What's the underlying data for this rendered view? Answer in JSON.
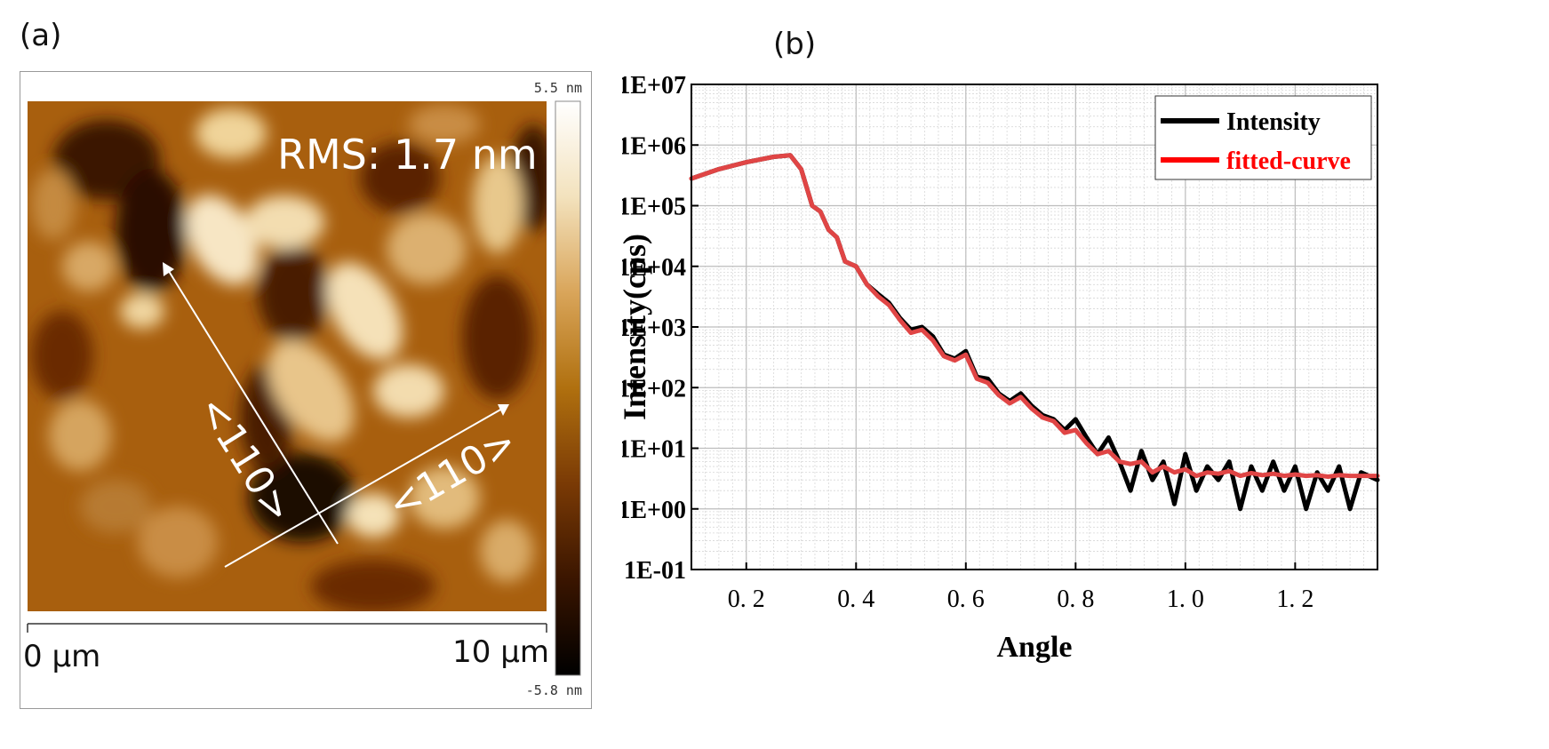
{
  "panels": {
    "a_label": "(a)",
    "b_label": "(b)"
  },
  "afm": {
    "rms_label": "RMS: 1.7 nm",
    "scale_max_label": "5.5 nm",
    "scale_min_label": "-5.8 nm",
    "x_start_label": "0 μm",
    "x_end_label": "10 μm",
    "direction_label_1": "<110>",
    "direction_label_2": "<110>",
    "colormap": [
      "#000000",
      "#3a1500",
      "#7a3a05",
      "#b0700f",
      "#d9a55a",
      "#f3e2bd",
      "#ffffff"
    ]
  },
  "chart_data": {
    "type": "line",
    "title": "",
    "xlabel": "Angle",
    "ylabel": "Intensity(cps)",
    "xlim": [
      0.1,
      1.35
    ],
    "ylim_log10": [
      -1,
      7
    ],
    "yscale": "log",
    "grid": true,
    "legend_position": "top-right",
    "x_ticks": [
      0.2,
      0.4,
      0.6,
      0.8,
      1.0,
      1.2
    ],
    "x_tick_labels": [
      "0. 2",
      "0. 4",
      "0. 6",
      "0. 8",
      "1. 0",
      "1. 2"
    ],
    "y_ticks_log10": [
      -1,
      0,
      1,
      2,
      3,
      4,
      5,
      6,
      7
    ],
    "y_tick_labels": [
      "1E-01",
      "1E+00",
      "1E+01",
      "1E+02",
      "1E+03",
      "1E+04",
      "1E+05",
      "1E+06",
      "1E+07"
    ],
    "series": [
      {
        "name": "Intensity",
        "color": "#000000",
        "x": [
          0.1,
          0.15,
          0.2,
          0.25,
          0.28,
          0.3,
          0.32,
          0.335,
          0.35,
          0.365,
          0.38,
          0.4,
          0.42,
          0.44,
          0.46,
          0.48,
          0.5,
          0.52,
          0.54,
          0.56,
          0.58,
          0.6,
          0.62,
          0.64,
          0.66,
          0.68,
          0.7,
          0.72,
          0.74,
          0.76,
          0.78,
          0.8,
          0.82,
          0.84,
          0.86,
          0.88,
          0.9,
          0.92,
          0.94,
          0.96,
          0.98,
          1.0,
          1.02,
          1.04,
          1.06,
          1.08,
          1.1,
          1.12,
          1.14,
          1.16,
          1.18,
          1.2,
          1.22,
          1.24,
          1.26,
          1.28,
          1.3,
          1.32,
          1.35
        ],
        "y": [
          280000,
          400000,
          520000,
          640000,
          680000,
          400000,
          100000,
          80000,
          40000,
          30000,
          12000,
          10000,
          5000,
          3500,
          2500,
          1400,
          900,
          1000,
          700,
          350,
          300,
          400,
          150,
          140,
          80,
          60,
          80,
          50,
          35,
          30,
          20,
          30,
          15,
          8,
          15,
          6,
          2,
          9,
          3,
          6,
          1.2,
          8,
          2,
          5,
          3,
          6,
          1,
          5,
          2,
          6,
          2,
          5,
          1,
          4,
          2,
          5,
          1,
          4,
          3
        ]
      },
      {
        "name": "fitted-curve",
        "color": "#e04545",
        "x": [
          0.1,
          0.15,
          0.2,
          0.25,
          0.28,
          0.3,
          0.32,
          0.335,
          0.35,
          0.365,
          0.38,
          0.4,
          0.42,
          0.44,
          0.46,
          0.48,
          0.5,
          0.52,
          0.54,
          0.56,
          0.58,
          0.6,
          0.62,
          0.64,
          0.66,
          0.68,
          0.7,
          0.72,
          0.74,
          0.76,
          0.78,
          0.8,
          0.82,
          0.84,
          0.86,
          0.88,
          0.9,
          0.92,
          0.94,
          0.96,
          0.98,
          1.0,
          1.02,
          1.04,
          1.06,
          1.08,
          1.1,
          1.12,
          1.14,
          1.16,
          1.18,
          1.2,
          1.22,
          1.24,
          1.26,
          1.28,
          1.3,
          1.32,
          1.35
        ],
        "y": [
          280000,
          400000,
          520000,
          640000,
          680000,
          400000,
          100000,
          80000,
          40000,
          30000,
          12000,
          10000,
          5000,
          3200,
          2300,
          1300,
          800,
          900,
          600,
          330,
          280,
          350,
          140,
          120,
          75,
          55,
          70,
          45,
          32,
          28,
          18,
          20,
          12,
          8,
          9,
          6,
          5.5,
          6,
          4,
          5,
          4,
          4.5,
          3.5,
          4,
          3.8,
          4.2,
          3.5,
          3.9,
          3.6,
          3.8,
          3.5,
          3.7,
          3.5,
          3.6,
          3.4,
          3.6,
          3.5,
          3.5,
          3.5
        ]
      }
    ]
  }
}
